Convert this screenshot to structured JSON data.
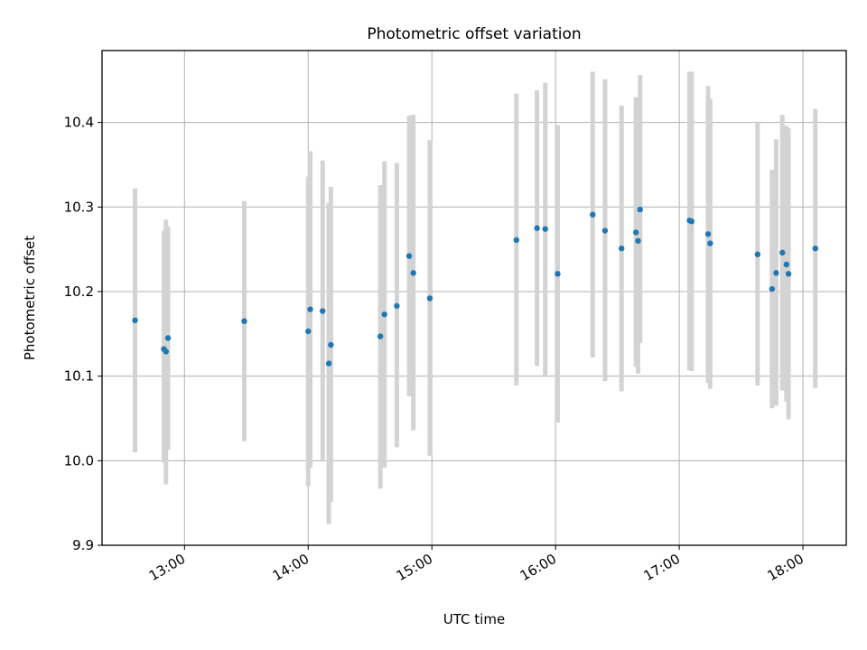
{
  "chart_data": {
    "type": "scatter",
    "title": "Photometric offset variation",
    "xlabel": "UTC time",
    "ylabel": "Photometric offset",
    "x_ticks": [
      "13:00",
      "14:00",
      "15:00",
      "16:00",
      "17:00",
      "18:00"
    ],
    "y_ticks": [
      "9.9",
      "10.0",
      "10.1",
      "10.2",
      "10.3",
      "10.4"
    ],
    "xlim": [
      "12:20",
      "18:21"
    ],
    "ylim": [
      9.9,
      10.485
    ],
    "grid": true,
    "colors": {
      "points": "#1f77b4",
      "errorbars": "#d3d3d3",
      "grid": "#b0b0b0",
      "axes": "#000000"
    },
    "series": [
      {
        "points": [
          {
            "x": "12:36",
            "y": 10.166,
            "ylow": 10.01,
            "yhigh": 10.322
          },
          {
            "x": "12:50",
            "y": 10.132,
            "ylow": 9.998,
            "yhigh": 10.272
          },
          {
            "x": "12:51",
            "y": 10.129,
            "ylow": 9.972,
            "yhigh": 10.285
          },
          {
            "x": "12:52",
            "y": 10.145,
            "ylow": 10.013,
            "yhigh": 10.277
          },
          {
            "x": "13:29",
            "y": 10.165,
            "ylow": 10.023,
            "yhigh": 10.307
          },
          {
            "x": "14:00",
            "y": 10.153,
            "ylow": 9.97,
            "yhigh": 10.336
          },
          {
            "x": "14:01",
            "y": 10.179,
            "ylow": 9.992,
            "yhigh": 10.366
          },
          {
            "x": "14:07",
            "y": 10.177,
            "ylow": 10.0,
            "yhigh": 10.355
          },
          {
            "x": "14:10",
            "y": 10.115,
            "ylow": 9.925,
            "yhigh": 10.305
          },
          {
            "x": "14:11",
            "y": 10.137,
            "ylow": 9.951,
            "yhigh": 10.324
          },
          {
            "x": "14:35",
            "y": 10.147,
            "ylow": 9.967,
            "yhigh": 10.326
          },
          {
            "x": "14:37",
            "y": 10.173,
            "ylow": 9.992,
            "yhigh": 10.354
          },
          {
            "x": "14:43",
            "y": 10.183,
            "ylow": 10.016,
            "yhigh": 10.352
          },
          {
            "x": "14:49",
            "y": 10.242,
            "ylow": 10.076,
            "yhigh": 10.408
          },
          {
            "x": "14:51",
            "y": 10.222,
            "ylow": 10.036,
            "yhigh": 10.409
          },
          {
            "x": "14:59",
            "y": 10.192,
            "ylow": 10.006,
            "yhigh": 10.379
          },
          {
            "x": "15:41",
            "y": 10.261,
            "ylow": 10.089,
            "yhigh": 10.434
          },
          {
            "x": "15:51",
            "y": 10.275,
            "ylow": 10.112,
            "yhigh": 10.438
          },
          {
            "x": "15:55",
            "y": 10.274,
            "ylow": 10.101,
            "yhigh": 10.447
          },
          {
            "x": "16:01",
            "y": 10.221,
            "ylow": 10.045,
            "yhigh": 10.397
          },
          {
            "x": "16:18",
            "y": 10.291,
            "ylow": 10.122,
            "yhigh": 10.46
          },
          {
            "x": "16:24",
            "y": 10.272,
            "ylow": 10.094,
            "yhigh": 10.451
          },
          {
            "x": "16:32",
            "y": 10.251,
            "ylow": 10.082,
            "yhigh": 10.42
          },
          {
            "x": "16:39",
            "y": 10.27,
            "ylow": 10.111,
            "yhigh": 10.43
          },
          {
            "x": "16:40",
            "y": 10.26,
            "ylow": 10.103,
            "yhigh": 10.416
          },
          {
            "x": "16:41",
            "y": 10.297,
            "ylow": 10.139,
            "yhigh": 10.456
          },
          {
            "x": "17:05",
            "y": 10.284,
            "ylow": 10.107,
            "yhigh": 10.46
          },
          {
            "x": "17:06",
            "y": 10.283,
            "ylow": 10.106,
            "yhigh": 10.46
          },
          {
            "x": "17:14",
            "y": 10.268,
            "ylow": 10.092,
            "yhigh": 10.443
          },
          {
            "x": "17:15",
            "y": 10.257,
            "ylow": 10.085,
            "yhigh": 10.428
          },
          {
            "x": "17:38",
            "y": 10.244,
            "ylow": 10.089,
            "yhigh": 10.4
          },
          {
            "x": "17:45",
            "y": 10.203,
            "ylow": 10.062,
            "yhigh": 10.344
          },
          {
            "x": "17:47",
            "y": 10.222,
            "ylow": 10.065,
            "yhigh": 10.38
          },
          {
            "x": "17:50",
            "y": 10.246,
            "ylow": 10.083,
            "yhigh": 10.409
          },
          {
            "x": "17:52",
            "y": 10.232,
            "ylow": 10.07,
            "yhigh": 10.396
          },
          {
            "x": "17:53",
            "y": 10.221,
            "ylow": 10.049,
            "yhigh": 10.393
          },
          {
            "x": "18:06",
            "y": 10.251,
            "ylow": 10.086,
            "yhigh": 10.416
          }
        ]
      }
    ]
  }
}
